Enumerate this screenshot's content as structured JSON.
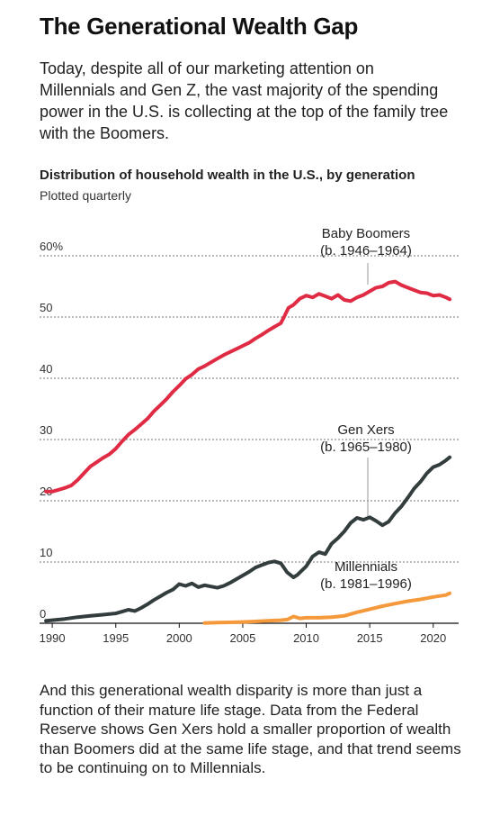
{
  "article": {
    "title": "The Generational Wealth Gap",
    "intro": "Today, despite all of our marketing attention on Millennials and Gen Z, the vast majority of the spending power in the U.S. is collecting at the top of the family tree with the Boomers.",
    "outro": "And this generational wealth disparity is more than just a function of their mature life stage. Data from the Federal Reserve shows Gen Xers hold a smaller proportion of wealth than Boomers did at the same life stage, and that trend seems to be continuing on to Millennials."
  },
  "chart_data": {
    "type": "line",
    "title": "Distribution of household wealth in the U.S., by generation",
    "subtitle": "Plotted quarterly",
    "xlabel": "",
    "ylabel": "",
    "xlim": [
      1989,
      2022
    ],
    "ylim": [
      0,
      60
    ],
    "x_ticks": [
      1990,
      1995,
      2000,
      2005,
      2010,
      2015,
      2020
    ],
    "y_ticks": [
      {
        "value": 0,
        "label": "0"
      },
      {
        "value": 10,
        "label": "10"
      },
      {
        "value": 20,
        "label": "20"
      },
      {
        "value": 30,
        "label": "30"
      },
      {
        "value": 40,
        "label": "40"
      },
      {
        "value": 50,
        "label": "50"
      },
      {
        "value": 60,
        "label": "60%"
      }
    ],
    "grid": "horizontal dotted",
    "series": [
      {
        "name": "Baby Boomers",
        "annotation_line1": "Baby Boomers",
        "annotation_line2": "(b. 1946–1964)",
        "color": "#e02b44",
        "x": [
          1989.5,
          1990,
          1990.5,
          1991,
          1991.5,
          1992,
          1992.5,
          1993,
          1993.5,
          1994,
          1994.5,
          1995,
          1995.5,
          1996,
          1996.5,
          1997,
          1997.5,
          1998,
          1998.5,
          1999,
          1999.5,
          2000,
          2000.5,
          2001,
          2001.5,
          2002,
          2002.5,
          2003,
          2003.5,
          2004,
          2004.5,
          2005,
          2005.5,
          2006,
          2006.5,
          2007,
          2007.5,
          2008,
          2008.3,
          2008.6,
          2009,
          2009.5,
          2010,
          2010.5,
          2011,
          2011.5,
          2012,
          2012.5,
          2013,
          2013.5,
          2014,
          2014.5,
          2015,
          2015.5,
          2016,
          2016.5,
          2017,
          2017.5,
          2018,
          2018.5,
          2019,
          2019.5,
          2020,
          2020.5,
          2021,
          2021.3
        ],
        "values": [
          21.5,
          21.5,
          21.8,
          22.1,
          22.5,
          23.4,
          24.5,
          25.6,
          26.3,
          27.0,
          27.6,
          28.5,
          29.7,
          30.8,
          31.6,
          32.5,
          33.4,
          34.6,
          35.6,
          36.6,
          37.8,
          38.8,
          39.9,
          40.6,
          41.5,
          42.0,
          42.6,
          43.2,
          43.8,
          44.3,
          44.8,
          45.3,
          45.8,
          46.5,
          47.1,
          47.8,
          48.4,
          49.0,
          50.2,
          51.5,
          52.0,
          53.0,
          53.5,
          53.2,
          53.8,
          53.4,
          53.0,
          53.6,
          52.8,
          52.6,
          53.2,
          53.6,
          54.2,
          54.8,
          55.0,
          55.6,
          55.8,
          55.2,
          54.8,
          54.4,
          54.0,
          53.9,
          53.5,
          53.6,
          53.2,
          52.9
        ]
      },
      {
        "name": "Gen Xers",
        "annotation_line1": "Gen Xers",
        "annotation_line2": "(b. 1965–1980)",
        "color": "#333d3d",
        "x": [
          1989.5,
          1990,
          1991,
          1992,
          1993,
          1994,
          1995,
          1995.5,
          1996,
          1996.5,
          1997,
          1997.5,
          1998,
          1998.5,
          1999,
          1999.5,
          2000,
          2000.5,
          2001,
          2001.5,
          2002,
          2002.5,
          2003,
          2003.5,
          2004,
          2004.5,
          2005,
          2005.5,
          2006,
          2006.5,
          2007,
          2007.5,
          2008,
          2008.5,
          2009,
          2009.3,
          2009.6,
          2010,
          2010.5,
          2011,
          2011.5,
          2012,
          2012.5,
          2013,
          2013.5,
          2014,
          2014.5,
          2015,
          2015.5,
          2016,
          2016.5,
          2017,
          2017.5,
          2018,
          2018.5,
          2019,
          2019.5,
          2020,
          2020.5,
          2021,
          2021.3
        ],
        "values": [
          0.4,
          0.5,
          0.7,
          1.0,
          1.2,
          1.4,
          1.6,
          1.9,
          2.2,
          2.0,
          2.5,
          3.1,
          3.8,
          4.4,
          5.0,
          5.5,
          6.4,
          6.1,
          6.5,
          5.9,
          6.2,
          6.0,
          5.8,
          6.1,
          6.6,
          7.2,
          7.8,
          8.4,
          9.1,
          9.5,
          9.9,
          10.1,
          9.8,
          8.3,
          7.5,
          7.9,
          8.5,
          9.3,
          10.9,
          11.6,
          11.3,
          13.0,
          13.9,
          15.0,
          16.4,
          17.2,
          16.9,
          17.3,
          16.7,
          16.0,
          16.6,
          18.0,
          19.1,
          20.5,
          22.0,
          23.1,
          24.5,
          25.5,
          25.9,
          26.6,
          27.1
        ]
      },
      {
        "name": "Millennials",
        "annotation_line1": "Millennials",
        "annotation_line2": "(b. 1981–1996)",
        "color": "#f59a3c",
        "x": [
          2002,
          2003,
          2004,
          2005,
          2006,
          2007,
          2008,
          2008.5,
          2009,
          2009.5,
          2010,
          2011,
          2012,
          2013,
          2014,
          2015,
          2016,
          2017,
          2018,
          2019,
          2020,
          2021,
          2021.3
        ],
        "values": [
          0.05,
          0.1,
          0.15,
          0.2,
          0.3,
          0.4,
          0.5,
          0.6,
          1.1,
          0.8,
          0.9,
          0.9,
          1.0,
          1.2,
          1.8,
          2.3,
          2.8,
          3.2,
          3.6,
          3.9,
          4.3,
          4.6,
          4.9
        ]
      }
    ]
  }
}
